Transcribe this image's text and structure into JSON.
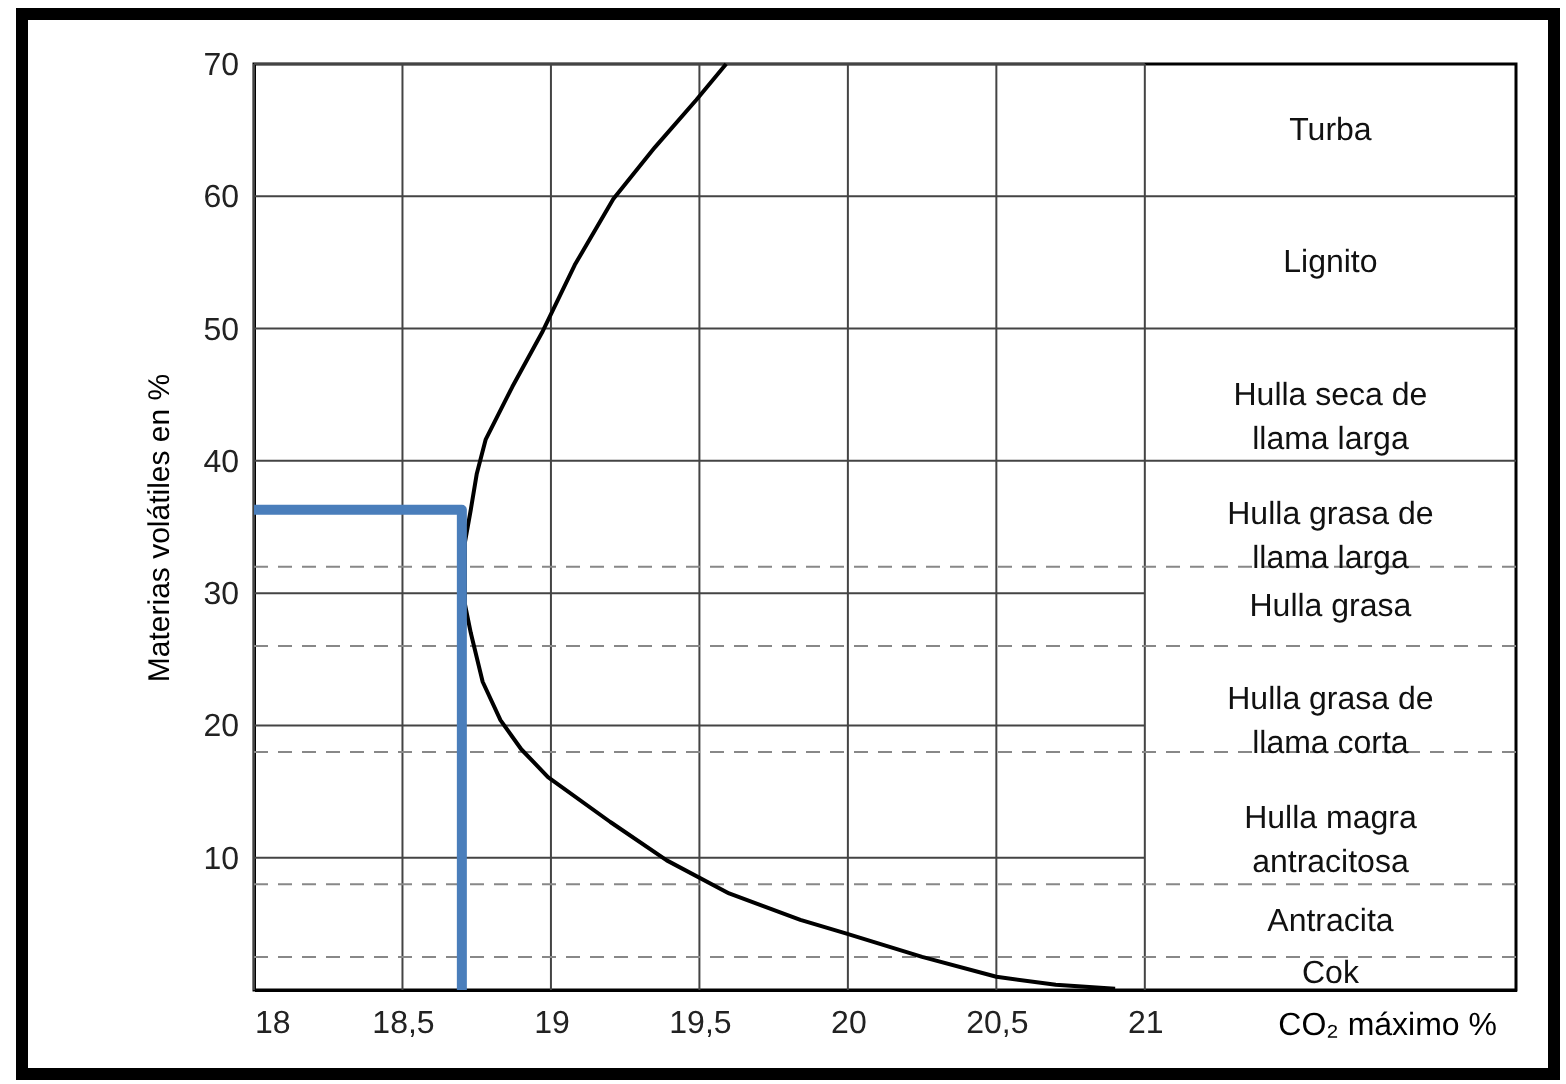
{
  "chart_data": {
    "type": "line",
    "xlabel": "CO₂ máximo %",
    "ylabel": "Materias volátiles en %",
    "xlim": [
      18,
      22.25
    ],
    "ylim": [
      0,
      70
    ],
    "xticks": [
      18,
      {
        "value": 18.5,
        "label": "18,5"
      },
      19,
      {
        "value": 19.5,
        "label": "19,5"
      },
      20,
      {
        "value": 20.5,
        "label": "20,5"
      },
      21
    ],
    "yticks": [
      10,
      20,
      30,
      40,
      50,
      60,
      70
    ],
    "grid": true,
    "series": [
      {
        "color": "#000000",
        "x": [
          19.59,
          19.49,
          19.35,
          19.21,
          19.08,
          18.97,
          18.87,
          18.78,
          18.75,
          18.73,
          18.71,
          18.71,
          18.73,
          18.77,
          18.83,
          18.9,
          18.99,
          19.2,
          19.39,
          19.6,
          19.84,
          19.99,
          20.25,
          20.5,
          20.7,
          20.9
        ],
        "values": [
          70,
          67.3,
          63.7,
          59.8,
          54.8,
          49.7,
          45.6,
          41.6,
          39,
          36.3,
          33.8,
          29.2,
          27,
          23.3,
          20.4,
          18.2,
          16.1,
          12.7,
          9.8,
          7.3,
          5.3,
          4.3,
          2.5,
          1.0,
          0.4,
          0.1
        ]
      },
      {
        "color": "#4a7ebb",
        "x": [
          18,
          18.7,
          18.7
        ],
        "values": [
          36.3,
          36.3,
          0
        ]
      }
    ],
    "ref_lines": [
      {
        "axis": "y",
        "value": 60,
        "color": "#444444",
        "line_style": "solid"
      },
      {
        "axis": "y",
        "value": 50,
        "color": "#444444",
        "line_style": "solid"
      },
      {
        "axis": "y",
        "value": 40,
        "color": "#444444",
        "line_style": "solid"
      },
      {
        "axis": "y",
        "value": 32,
        "color": "#888888",
        "line_style": "dashed"
      },
      {
        "axis": "y",
        "value": 26,
        "color": "#888888",
        "line_style": "dashed"
      },
      {
        "axis": "y",
        "value": 18,
        "color": "#888888",
        "line_style": "dashed"
      },
      {
        "axis": "y",
        "value": 8,
        "color": "#888888",
        "line_style": "dashed"
      },
      {
        "axis": "y",
        "value": 2.5,
        "color": "#888888",
        "line_style": "dashed"
      }
    ],
    "annotations": [
      "Turba",
      "Lignito",
      "Hulla seca de\nllama larga",
      "Hulla grasa de\nllama larga",
      "Hulla grasa",
      "Hulla grasa de\nllama corta",
      "Hulla magra\nantracitosa",
      "Antracita",
      "Cok"
    ]
  }
}
